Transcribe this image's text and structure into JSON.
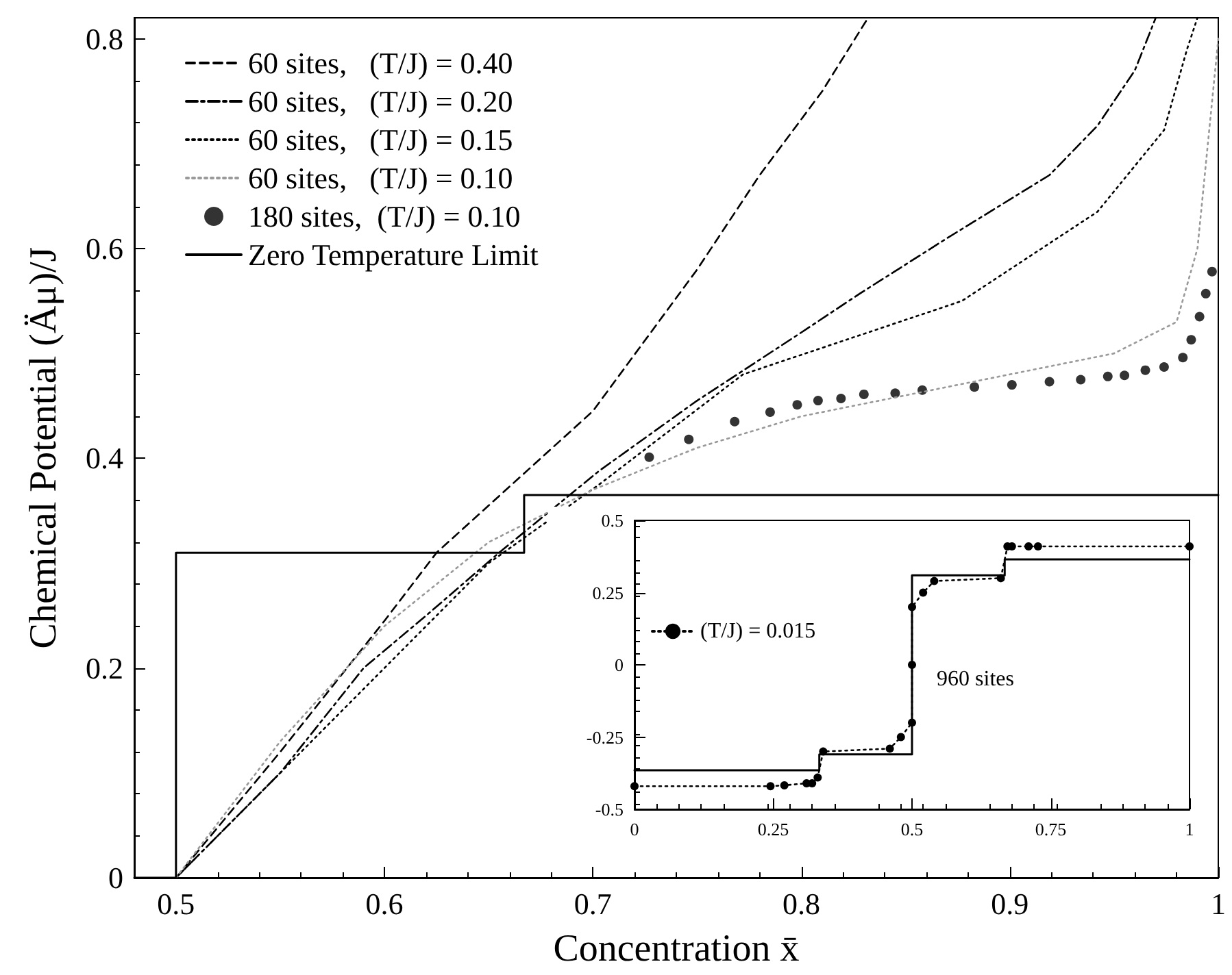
{
  "chart_data": [
    {
      "type": "line",
      "xlabel": "Concentration x̄",
      "ylabel": "Chemical Potential (Äμ)/J",
      "xlim": [
        0.48,
        1
      ],
      "ylim": [
        0,
        0.82
      ],
      "xticks": [
        0.5,
        0.6,
        0.7,
        0.8,
        0.9,
        1
      ],
      "yticks": [
        0,
        0.2,
        0.4,
        0.6,
        0.8
      ],
      "legend": "top left",
      "series": [
        {
          "name": "60 sites,   (T/J) = 0.40",
          "color": "#000000",
          "line_style": "dashed",
          "marker": "none",
          "x": [
            0.5,
            0.55,
            0.6,
            0.625,
            0.65,
            0.7,
            0.75,
            0.78,
            0.81,
            0.832
          ],
          "values": [
            0,
            0.12,
            0.245,
            0.31,
            0.355,
            0.445,
            0.58,
            0.67,
            0.75,
            0.82
          ]
        },
        {
          "name": "60 sites,   (T/J) = 0.20",
          "color": "#000000",
          "line_style": "dashdot",
          "marker": "none",
          "x": [
            0.5,
            0.55,
            0.59,
            0.62,
            0.655,
            0.703,
            0.75,
            0.8,
            0.828,
            0.87,
            0.919,
            0.942,
            0.96,
            0.97
          ],
          "values": [
            0,
            0.1,
            0.2,
            0.25,
            0.31,
            0.388,
            0.455,
            0.52,
            0.557,
            0.61,
            0.67,
            0.717,
            0.77,
            0.82
          ]
        },
        {
          "name": "60 sites,   (T/J) = 0.15",
          "color": "#000000",
          "line_style": "dotted",
          "marker": "none",
          "x": [
            0.5,
            0.55,
            0.6,
            0.65,
            0.703,
            0.772,
            0.877,
            0.942,
            0.974,
            0.985,
            0.99
          ],
          "values": [
            0,
            0.1,
            0.2,
            0.3,
            0.375,
            0.48,
            0.55,
            0.635,
            0.713,
            0.79,
            0.82
          ]
        },
        {
          "name": "60 sites,   (T/J) = 0.10",
          "color": "#999999",
          "line_style": "dotted",
          "marker": "none",
          "x": [
            0.5,
            0.55,
            0.6,
            0.65,
            0.7,
            0.75,
            0.8,
            0.85,
            0.9,
            0.95,
            0.98,
            0.99,
            0.995,
            1.0
          ],
          "values": [
            0,
            0.13,
            0.24,
            0.32,
            0.37,
            0.41,
            0.44,
            0.46,
            0.48,
            0.5,
            0.53,
            0.6,
            0.7,
            0.8
          ]
        },
        {
          "name": "180 sites,  (T/J) = 0.10",
          "type": "scatter",
          "color": "#000000",
          "marker": "circle",
          "x": [
            0.727,
            0.746,
            0.768,
            0.785,
            0.798,
            0.808,
            0.819,
            0.83,
            0.845,
            0.858,
            0.883,
            0.901,
            0.919,
            0.934,
            0.947,
            0.955,
            0.965,
            0.974,
            0.983,
            0.987,
            0.991,
            0.994,
            0.997
          ],
          "values": [
            0.401,
            0.418,
            0.435,
            0.444,
            0.451,
            0.455,
            0.457,
            0.461,
            0.462,
            0.465,
            0.468,
            0.47,
            0.473,
            0.475,
            0.478,
            0.479,
            0.484,
            0.487,
            0.496,
            0.513,
            0.535,
            0.557,
            0.578
          ]
        },
        {
          "name": "Zero Temperature Limit",
          "color": "#000000",
          "line_style": "solid",
          "marker": "none",
          "x": [
            0.48,
            0.5,
            0.5,
            0.667,
            0.667,
            1.0
          ],
          "values": [
            0,
            0,
            0.31,
            0.31,
            0.365,
            0.365
          ]
        }
      ]
    },
    {
      "type": "line",
      "xlim": [
        0,
        1
      ],
      "ylim": [
        -0.5,
        0.5
      ],
      "xticks": [
        0,
        0.25,
        0.5,
        0.75,
        1
      ],
      "yticks": [
        -0.5,
        -0.25,
        0,
        0.25,
        0.5
      ],
      "legend": "left",
      "annotations": [
        "960 sites"
      ],
      "series": [
        {
          "name": "(T/J) = 0.015",
          "color": "#000000",
          "line_style": "dotted",
          "marker": "circle",
          "x": [
            0,
            0.245,
            0.27,
            0.31,
            0.32,
            0.33,
            0.34,
            0.46,
            0.48,
            0.5,
            0.5,
            0.5,
            0.52,
            0.54,
            0.66,
            0.672,
            0.68,
            0.71,
            0.727,
            1.0
          ],
          "values": [
            -0.42,
            -0.42,
            -0.417,
            -0.41,
            -0.41,
            -0.39,
            -0.3,
            -0.29,
            -0.25,
            -0.2,
            0,
            0.2,
            0.25,
            0.29,
            0.3,
            0.41,
            0.41,
            0.41,
            0.41,
            0.41
          ]
        },
        {
          "color": "#000000",
          "line_style": "solid",
          "marker": "none",
          "x": [
            0,
            0.333,
            0.333,
            0.5,
            0.5,
            0.667,
            0.667,
            1.0
          ],
          "values": [
            -0.365,
            -0.365,
            -0.31,
            -0.31,
            0.31,
            0.31,
            0.365,
            0.365
          ]
        }
      ]
    }
  ]
}
